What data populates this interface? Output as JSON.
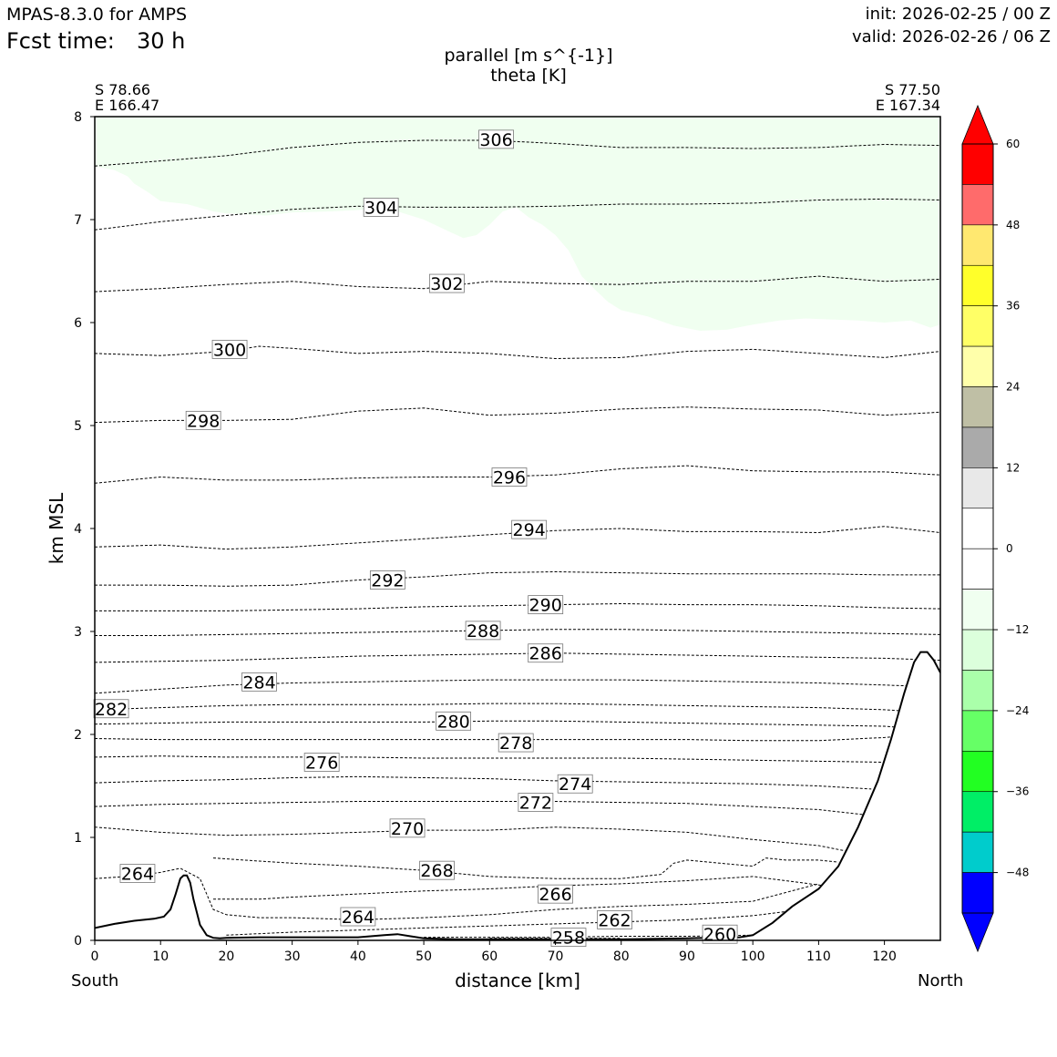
{
  "header": {
    "model": "MPAS-8.3.0 for AMPS",
    "fcst_label": "Fcst time:",
    "fcst_value": "30 h",
    "init": "init: 2026-02-25 / 00 Z",
    "valid": "valid: 2026-02-26 / 06 Z"
  },
  "title": {
    "line1": "parallel [m s^{-1}]",
    "line2": "theta [K]"
  },
  "endpoints": {
    "left_lat": "S 78.66",
    "left_lon": "E 166.47",
    "right_lat": "S 77.50",
    "right_lon": "E 167.34",
    "left_name": "South",
    "right_name": "North"
  },
  "chart_data": {
    "type": "contour",
    "xlabel": "distance [km]",
    "ylabel": "km MSL",
    "xlim": [
      0,
      128.5
    ],
    "ylim": [
      0,
      8
    ],
    "xticks": [
      0,
      10,
      20,
      30,
      40,
      50,
      60,
      70,
      80,
      90,
      100,
      110,
      120
    ],
    "yticks": [
      0,
      1,
      2,
      3,
      4,
      5,
      6,
      7,
      8
    ],
    "terrain": {
      "x": [
        0,
        3,
        6,
        9,
        10.5,
        11.5,
        12.3,
        13,
        13.5,
        14,
        14.5,
        15,
        16,
        17,
        18,
        19,
        20,
        25,
        30,
        35,
        40,
        44,
        46,
        48,
        50,
        55,
        60,
        70,
        80,
        90,
        98,
        100,
        101,
        103,
        106,
        110,
        113,
        116,
        119,
        121,
        123,
        124.5,
        125.5,
        126.5,
        127.5,
        128.5
      ],
      "y": [
        0.12,
        0.16,
        0.19,
        0.21,
        0.23,
        0.3,
        0.45,
        0.6,
        0.63,
        0.63,
        0.56,
        0.4,
        0.15,
        0.05,
        0.025,
        0.02,
        0.025,
        0.03,
        0.03,
        0.03,
        0.03,
        0.05,
        0.06,
        0.04,
        0.02,
        0.01,
        0.01,
        0.01,
        0.01,
        0.02,
        0.03,
        0.05,
        0.09,
        0.17,
        0.33,
        0.5,
        0.72,
        1.1,
        1.55,
        1.95,
        2.4,
        2.7,
        2.8,
        2.8,
        2.72,
        2.6
      ]
    },
    "wind_fill": {
      "level_range": "-12 to -6",
      "color": "#f0fff0",
      "boundary_x": [
        0,
        3,
        5,
        6,
        8,
        10,
        14,
        18,
        20,
        26,
        30,
        36,
        42,
        46,
        50,
        54,
        56,
        58,
        60,
        62,
        64,
        66,
        68,
        70,
        72,
        74,
        76,
        78,
        80,
        84,
        88,
        92,
        96,
        100,
        104,
        108,
        112,
        116,
        120,
        124,
        127,
        128.5
      ],
      "boundary_y": [
        7.52,
        7.48,
        7.42,
        7.35,
        7.27,
        7.18,
        7.15,
        7.08,
        7.06,
        7.04,
        7.07,
        7.08,
        7.1,
        7.08,
        7.0,
        6.88,
        6.82,
        6.85,
        6.95,
        7.08,
        7.12,
        7.02,
        6.95,
        6.85,
        6.7,
        6.45,
        6.32,
        6.2,
        6.12,
        6.06,
        5.97,
        5.92,
        5.93,
        5.98,
        6.02,
        6.04,
        6.03,
        6.02,
        6.0,
        6.02,
        5.95,
        5.98
      ]
    },
    "theta_contours": [
      {
        "level": 306,
        "x": [
          0,
          10,
          20,
          30,
          40,
          50,
          60,
          70,
          80,
          90,
          100,
          110,
          120,
          128.5
        ],
        "y": [
          7.52,
          7.57,
          7.62,
          7.7,
          7.75,
          7.77,
          7.77,
          7.74,
          7.7,
          7.7,
          7.69,
          7.7,
          7.73,
          7.72
        ]
      },
      {
        "level": 304,
        "x": [
          0,
          10,
          20,
          30,
          40,
          50,
          60,
          70,
          80,
          90,
          100,
          110,
          120,
          128.5
        ],
        "y": [
          6.9,
          6.98,
          7.04,
          7.1,
          7.13,
          7.12,
          7.12,
          7.13,
          7.15,
          7.15,
          7.16,
          7.19,
          7.2,
          7.19
        ]
      },
      {
        "level": 302,
        "x": [
          0,
          10,
          20,
          30,
          40,
          50,
          60,
          70,
          80,
          90,
          100,
          110,
          120,
          128.5
        ],
        "y": [
          6.3,
          6.33,
          6.37,
          6.4,
          6.35,
          6.33,
          6.4,
          6.38,
          6.37,
          6.4,
          6.4,
          6.45,
          6.4,
          6.42
        ]
      },
      {
        "level": 300,
        "x": [
          0,
          10,
          20,
          25,
          30,
          40,
          50,
          60,
          70,
          80,
          90,
          100,
          110,
          120,
          128.5
        ],
        "y": [
          5.7,
          5.68,
          5.72,
          5.77,
          5.75,
          5.7,
          5.72,
          5.7,
          5.65,
          5.66,
          5.72,
          5.74,
          5.7,
          5.66,
          5.72
        ]
      },
      {
        "level": 298,
        "x": [
          0,
          10,
          20,
          30,
          40,
          50,
          60,
          70,
          80,
          90,
          100,
          110,
          120,
          128.5
        ],
        "y": [
          5.03,
          5.05,
          5.05,
          5.06,
          5.14,
          5.17,
          5.1,
          5.12,
          5.16,
          5.18,
          5.16,
          5.15,
          5.1,
          5.13
        ]
      },
      {
        "level": 296,
        "x": [
          0,
          10,
          20,
          30,
          40,
          50,
          60,
          70,
          80,
          90,
          100,
          110,
          120,
          128.5
        ],
        "y": [
          4.44,
          4.5,
          4.47,
          4.47,
          4.49,
          4.5,
          4.5,
          4.52,
          4.58,
          4.61,
          4.56,
          4.55,
          4.55,
          4.52
        ]
      },
      {
        "level": 294,
        "x": [
          0,
          10,
          20,
          30,
          40,
          50,
          60,
          70,
          80,
          90,
          100,
          110,
          120,
          128.5
        ],
        "y": [
          3.82,
          3.84,
          3.8,
          3.82,
          3.86,
          3.9,
          3.94,
          3.98,
          4.0,
          3.97,
          3.97,
          3.96,
          4.02,
          3.96
        ]
      },
      {
        "level": 292,
        "x": [
          0,
          10,
          20,
          30,
          40,
          50,
          60,
          70,
          80,
          90,
          100,
          110,
          120,
          128.5
        ],
        "y": [
          3.45,
          3.45,
          3.44,
          3.45,
          3.5,
          3.53,
          3.57,
          3.58,
          3.57,
          3.56,
          3.56,
          3.56,
          3.55,
          3.55
        ]
      },
      {
        "level": 290,
        "x": [
          0,
          10,
          20,
          30,
          40,
          50,
          60,
          70,
          80,
          90,
          100,
          110,
          120,
          128.5
        ],
        "y": [
          3.2,
          3.2,
          3.2,
          3.21,
          3.22,
          3.24,
          3.25,
          3.26,
          3.27,
          3.26,
          3.26,
          3.25,
          3.23,
          3.22
        ]
      },
      {
        "level": 288,
        "x": [
          0,
          10,
          20,
          30,
          40,
          50,
          60,
          70,
          80,
          90,
          100,
          110,
          120,
          128.5
        ],
        "y": [
          2.96,
          2.96,
          2.97,
          2.98,
          2.99,
          3.0,
          3.01,
          3.02,
          3.02,
          3.01,
          3.0,
          2.99,
          2.98,
          2.97
        ]
      },
      {
        "level": 286,
        "x": [
          0,
          10,
          20,
          30,
          40,
          50,
          60,
          70,
          80,
          90,
          100,
          110,
          120,
          128.5
        ],
        "y": [
          2.7,
          2.71,
          2.72,
          2.74,
          2.76,
          2.77,
          2.78,
          2.79,
          2.78,
          2.77,
          2.76,
          2.75,
          2.74,
          2.72
        ]
      },
      {
        "level": 284,
        "x": [
          0,
          10,
          20,
          30,
          40,
          50,
          60,
          70,
          80,
          90,
          100,
          110,
          120,
          128.5
        ],
        "y": [
          2.4,
          2.44,
          2.48,
          2.5,
          2.51,
          2.52,
          2.53,
          2.53,
          2.53,
          2.52,
          2.51,
          2.5,
          2.48,
          2.46
        ]
      },
      {
        "level": 282,
        "x": [
          0,
          10,
          20,
          30,
          40,
          50,
          60,
          70,
          80,
          90,
          100,
          110,
          120,
          125
        ],
        "y": [
          2.24,
          2.26,
          2.28,
          2.29,
          2.29,
          2.29,
          2.3,
          2.3,
          2.29,
          2.28,
          2.27,
          2.26,
          2.24,
          2.22
        ]
      },
      {
        "level": 280,
        "x": [
          0,
          10,
          20,
          30,
          40,
          50,
          60,
          70,
          80,
          90,
          100,
          110,
          120,
          124
        ],
        "y": [
          2.1,
          2.11,
          2.12,
          2.12,
          2.12,
          2.12,
          2.13,
          2.13,
          2.12,
          2.11,
          2.1,
          2.09,
          2.08,
          2.06
        ]
      },
      {
        "level": 278,
        "x": [
          0,
          10,
          20,
          30,
          40,
          50,
          60,
          70,
          80,
          90,
          100,
          110,
          120,
          122
        ],
        "y": [
          1.96,
          1.95,
          1.95,
          1.95,
          1.95,
          1.95,
          1.95,
          1.95,
          1.95,
          1.95,
          1.94,
          1.94,
          1.97,
          1.98
        ]
      },
      {
        "level": 276,
        "x": [
          0,
          10,
          20,
          30,
          40,
          50,
          60,
          70,
          80,
          90,
          100,
          110,
          120
        ],
        "y": [
          1.78,
          1.79,
          1.78,
          1.78,
          1.78,
          1.77,
          1.77,
          1.77,
          1.77,
          1.76,
          1.75,
          1.74,
          1.73
        ]
      },
      {
        "level": 274,
        "x": [
          0,
          10,
          20,
          30,
          40,
          50,
          60,
          70,
          80,
          90,
          100,
          110,
          118
        ],
        "y": [
          1.53,
          1.55,
          1.56,
          1.58,
          1.59,
          1.58,
          1.57,
          1.55,
          1.54,
          1.53,
          1.52,
          1.5,
          1.47
        ]
      },
      {
        "level": 272,
        "x": [
          0,
          10,
          20,
          30,
          40,
          50,
          60,
          70,
          80,
          90,
          100,
          110,
          117
        ],
        "y": [
          1.3,
          1.32,
          1.33,
          1.34,
          1.35,
          1.35,
          1.35,
          1.35,
          1.34,
          1.33,
          1.3,
          1.27,
          1.22
        ]
      },
      {
        "level": 270,
        "x": [
          0,
          10,
          20,
          30,
          40,
          50,
          60,
          70,
          80,
          90,
          100,
          110,
          114
        ],
        "y": [
          1.1,
          1.05,
          1.02,
          1.03,
          1.05,
          1.07,
          1.07,
          1.1,
          1.08,
          1.05,
          0.98,
          0.92,
          0.87
        ]
      },
      {
        "level": 268,
        "x": [
          18,
          25,
          30,
          40,
          50,
          60,
          70,
          80,
          86,
          88,
          90,
          95,
          100,
          102,
          105,
          110,
          113
        ],
        "y": [
          0.8,
          0.77,
          0.75,
          0.72,
          0.68,
          0.62,
          0.6,
          0.6,
          0.64,
          0.75,
          0.78,
          0.75,
          0.72,
          0.8,
          0.78,
          0.78,
          0.76
        ]
      },
      {
        "level": 266,
        "x": [
          18,
          25,
          30,
          40,
          50,
          60,
          70,
          80,
          90,
          100,
          105,
          111
        ],
        "y": [
          0.4,
          0.4,
          0.42,
          0.45,
          0.48,
          0.5,
          0.53,
          0.55,
          0.58,
          0.62,
          0.58,
          0.53
        ]
      },
      {
        "level": 264,
        "x": [
          0,
          5,
          10,
          13,
          16,
          17,
          18,
          20,
          25,
          30,
          40,
          50,
          60,
          70,
          80,
          90,
          100,
          110
        ],
        "y": [
          0.6,
          0.62,
          0.66,
          0.7,
          0.6,
          0.45,
          0.3,
          0.25,
          0.22,
          0.22,
          0.2,
          0.22,
          0.25,
          0.3,
          0.33,
          0.35,
          0.38,
          0.55
        ]
      },
      {
        "level": 262,
        "x": [
          20,
          30,
          40,
          50,
          60,
          70,
          80,
          90,
          100,
          105,
          108
        ],
        "y": [
          0.05,
          0.08,
          0.1,
          0.12,
          0.14,
          0.16,
          0.18,
          0.2,
          0.24,
          0.28,
          0.32
        ]
      },
      {
        "level": 260,
        "x": [
          50,
          60,
          70,
          80,
          90,
          100
        ],
        "y": [
          0.03,
          0.03,
          0.03,
          0.04,
          0.04,
          0.05
        ]
      },
      {
        "level": 258,
        "x": [
          60,
          65,
          70,
          75,
          80
        ],
        "y": [
          0.02,
          0.02,
          0.02,
          0.02,
          0.02
        ]
      }
    ],
    "contour_labels": [
      {
        "text": "306",
        "x": 61,
        "y": 7.78
      },
      {
        "text": "304",
        "x": 43.5,
        "y": 7.12
      },
      {
        "text": "302",
        "x": 53.5,
        "y": 6.38
      },
      {
        "text": "300",
        "x": 20.5,
        "y": 5.74
      },
      {
        "text": "298",
        "x": 16.5,
        "y": 5.05
      },
      {
        "text": "296",
        "x": 63,
        "y": 4.5
      },
      {
        "text": "294",
        "x": 66,
        "y": 3.99
      },
      {
        "text": "292",
        "x": 44.5,
        "y": 3.5
      },
      {
        "text": "290",
        "x": 68.5,
        "y": 3.26
      },
      {
        "text": "288",
        "x": 59,
        "y": 3.01
      },
      {
        "text": "286",
        "x": 68.5,
        "y": 2.79
      },
      {
        "text": "284",
        "x": 25,
        "y": 2.51
      },
      {
        "text": "282",
        "x": 2.5,
        "y": 2.25
      },
      {
        "text": "280",
        "x": 54.5,
        "y": 2.13
      },
      {
        "text": "278",
        "x": 64,
        "y": 1.92
      },
      {
        "text": "276",
        "x": 34.5,
        "y": 1.73
      },
      {
        "text": "274",
        "x": 73,
        "y": 1.52
      },
      {
        "text": "272",
        "x": 67,
        "y": 1.34
      },
      {
        "text": "270",
        "x": 47.5,
        "y": 1.09
      },
      {
        "text": "268",
        "x": 52,
        "y": 0.68
      },
      {
        "text": "266",
        "x": 70,
        "y": 0.45
      },
      {
        "text": "264",
        "x": 6.5,
        "y": 0.65
      },
      {
        "text": "264",
        "x": 40,
        "y": 0.23
      },
      {
        "text": "262",
        "x": 79,
        "y": 0.2
      },
      {
        "text": "260",
        "x": 95,
        "y": 0.06
      },
      {
        "text": "258",
        "x": 72,
        "y": 0.03
      }
    ],
    "colorbar": {
      "ticks": [
        "60",
        "48",
        "36",
        "24",
        "12",
        "0",
        "−12",
        "−24",
        "−36",
        "−48"
      ],
      "tick_values": [
        60,
        48,
        36,
        24,
        12,
        0,
        -12,
        -24,
        -36,
        -48
      ],
      "range": [
        -54,
        60
      ],
      "levels": [
        {
          "from": 54,
          "to": 60,
          "color": "#ff0000"
        },
        {
          "from": 48,
          "to": 54,
          "color": "#ff6b6b"
        },
        {
          "from": 42,
          "to": 48,
          "color": "#ffe870"
        },
        {
          "from": 36,
          "to": 42,
          "color": "#ffff2a"
        },
        {
          "from": 30,
          "to": 36,
          "color": "#ffff66"
        },
        {
          "from": 24,
          "to": 30,
          "color": "#ffffaa"
        },
        {
          "from": 18,
          "to": 24,
          "color": "#bfbfa5"
        },
        {
          "from": 12,
          "to": 18,
          "color": "#aaaaaa"
        },
        {
          "from": 6,
          "to": 12,
          "color": "#e8e8e8"
        },
        {
          "from": 0,
          "to": 6,
          "color": "#ffffff"
        },
        {
          "from": -6,
          "to": 0,
          "color": "#ffffff"
        },
        {
          "from": -12,
          "to": -6,
          "color": "#f0fff0"
        },
        {
          "from": -18,
          "to": -12,
          "color": "#dcffdc"
        },
        {
          "from": -24,
          "to": -18,
          "color": "#aaffaa"
        },
        {
          "from": -30,
          "to": -24,
          "color": "#66ff66"
        },
        {
          "from": -36,
          "to": -30,
          "color": "#22ff22"
        },
        {
          "from": -42,
          "to": -36,
          "color": "#00ee66"
        },
        {
          "from": -48,
          "to": -42,
          "color": "#00cccc"
        },
        {
          "from": -54,
          "to": -48,
          "color": "#0000ff"
        }
      ],
      "over_color": "#ff0000",
      "under_color": "#0000ff"
    }
  }
}
